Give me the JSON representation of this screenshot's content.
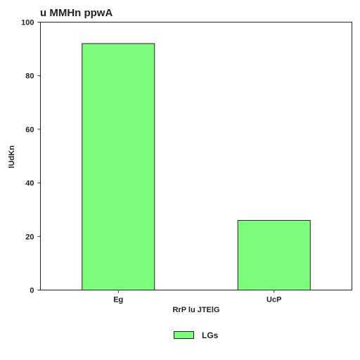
{
  "chart_data": {
    "type": "bar",
    "title": "u MMHn ppwA",
    "xlabel": "RrP lu JTElG",
    "ylabel": "lUdKn",
    "categories": [
      "Eg",
      "UcP"
    ],
    "series": [
      {
        "name": "LGs",
        "values": [
          92,
          26
        ],
        "color": "#7cff7c"
      }
    ],
    "ylim": [
      0,
      100
    ],
    "yticks": [
      0,
      20,
      40,
      60,
      80,
      100
    ],
    "grid": false,
    "legend_position": "bottom-center"
  }
}
